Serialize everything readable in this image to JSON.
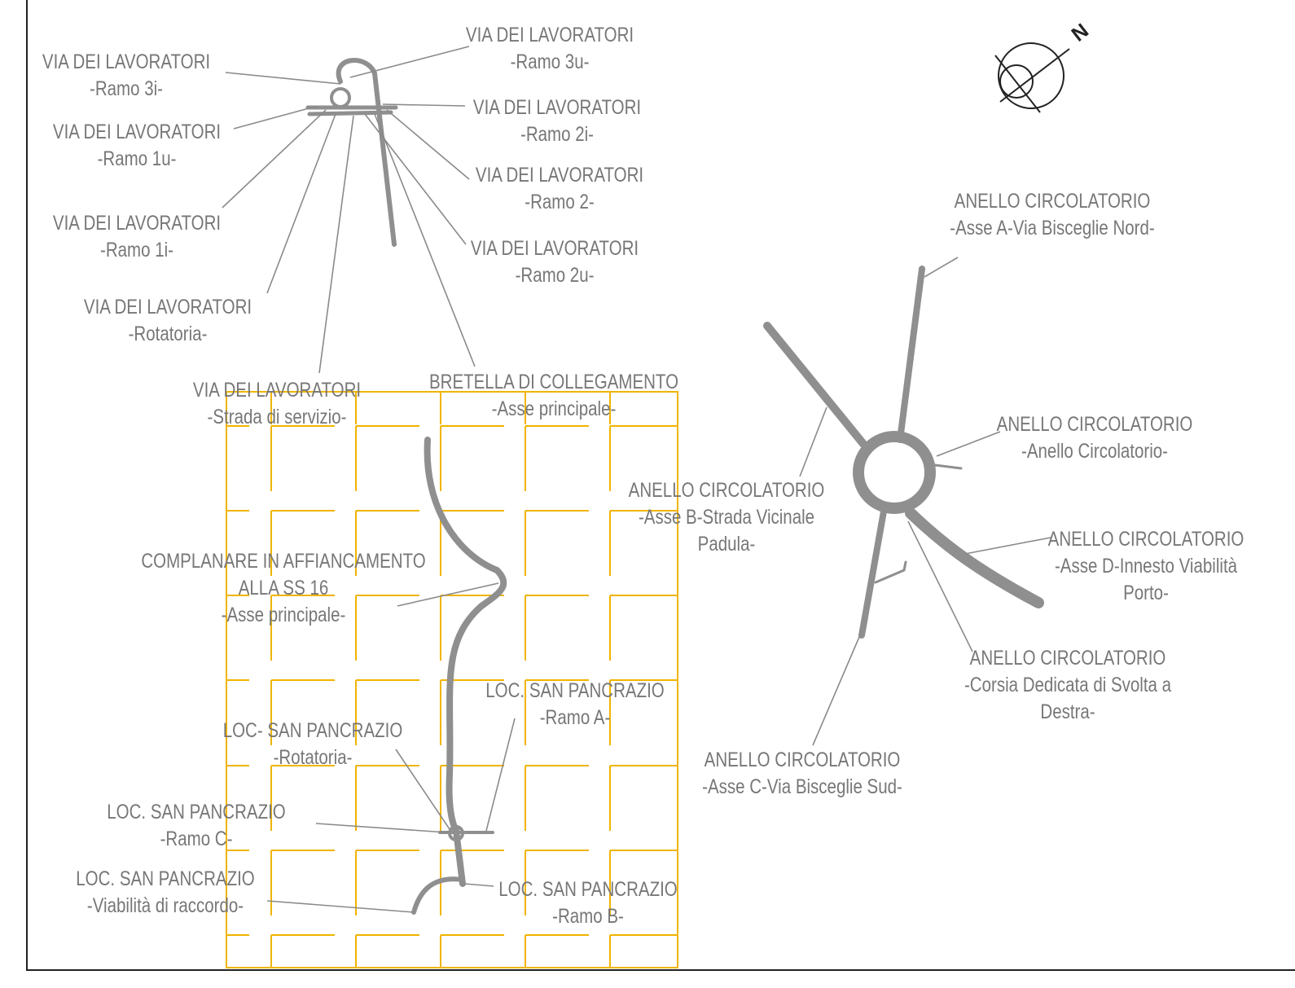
{
  "labels": [
    {
      "lines": [
        "VIA DEI LAVORATORI",
        "-Ramo 3i-"
      ]
    },
    {
      "lines": [
        "VIA DEI LAVORATORI",
        "-Ramo 3u-"
      ]
    },
    {
      "lines": [
        "VIA DEI LAVORATORI",
        "-Ramo 1u-"
      ]
    },
    {
      "lines": [
        "VIA DEI LAVORATORI",
        "-Ramo 2i-"
      ]
    },
    {
      "lines": [
        "VIA DEI LAVORATORI",
        "-Ramo 1i-"
      ]
    },
    {
      "lines": [
        "VIA DEI LAVORATORI",
        "-Ramo 2-"
      ]
    },
    {
      "lines": [
        "VIA DEI LAVORATORI",
        "-Ramo 2u-"
      ]
    },
    {
      "lines": [
        "VIA DEI LAVORATORI",
        "-Rotatoria-"
      ]
    },
    {
      "lines": [
        "VIA DEI LAVORATORI",
        "-Strada di servizio-"
      ]
    },
    {
      "lines": [
        "BRETELLA DI COLLEGAMENTO",
        "-Asse principale-"
      ]
    },
    {
      "lines": [
        "ANELLO CIRCOLATORIO",
        "-Asse A-Via Bisceglie Nord-"
      ]
    },
    {
      "lines": [
        "ANELLO CIRCOLATORIO",
        "-Anello Circolatorio-"
      ]
    },
    {
      "lines": [
        "ANELLO CIRCOLATORIO",
        "-Asse B-Strada Vicinale",
        "Padula-"
      ]
    },
    {
      "lines": [
        "COMPLANARE IN AFFIANCAMENTO",
        "ALLA SS 16",
        "-Asse principale-"
      ]
    },
    {
      "lines": [
        "ANELLO CIRCOLATORIO",
        "-Asse D-Innesto Viabilità",
        "Porto-"
      ]
    },
    {
      "lines": [
        "ANELLO CIRCOLATORIO",
        "-Corsia Dedicata di Svolta a",
        "Destra-"
      ]
    },
    {
      "lines": [
        "LOC. SAN PANCRAZIO",
        "-Ramo A-"
      ]
    },
    {
      "lines": [
        "LOC- SAN PANCRAZIO",
        "-Rotatoria-"
      ]
    },
    {
      "lines": [
        "ANELLO CIRCOLATORIO",
        "-Asse C-Via Bisceglie Sud-"
      ]
    },
    {
      "lines": [
        "LOC. SAN PANCRAZIO",
        "-Ramo C-"
      ]
    },
    {
      "lines": [
        "LOC. SAN PANCRAZIO",
        "-Viabilità di raccordo-"
      ]
    },
    {
      "lines": [
        "LOC. SAN PANCRAZIO",
        "-Ramo B-"
      ]
    }
  ],
  "north": "N"
}
